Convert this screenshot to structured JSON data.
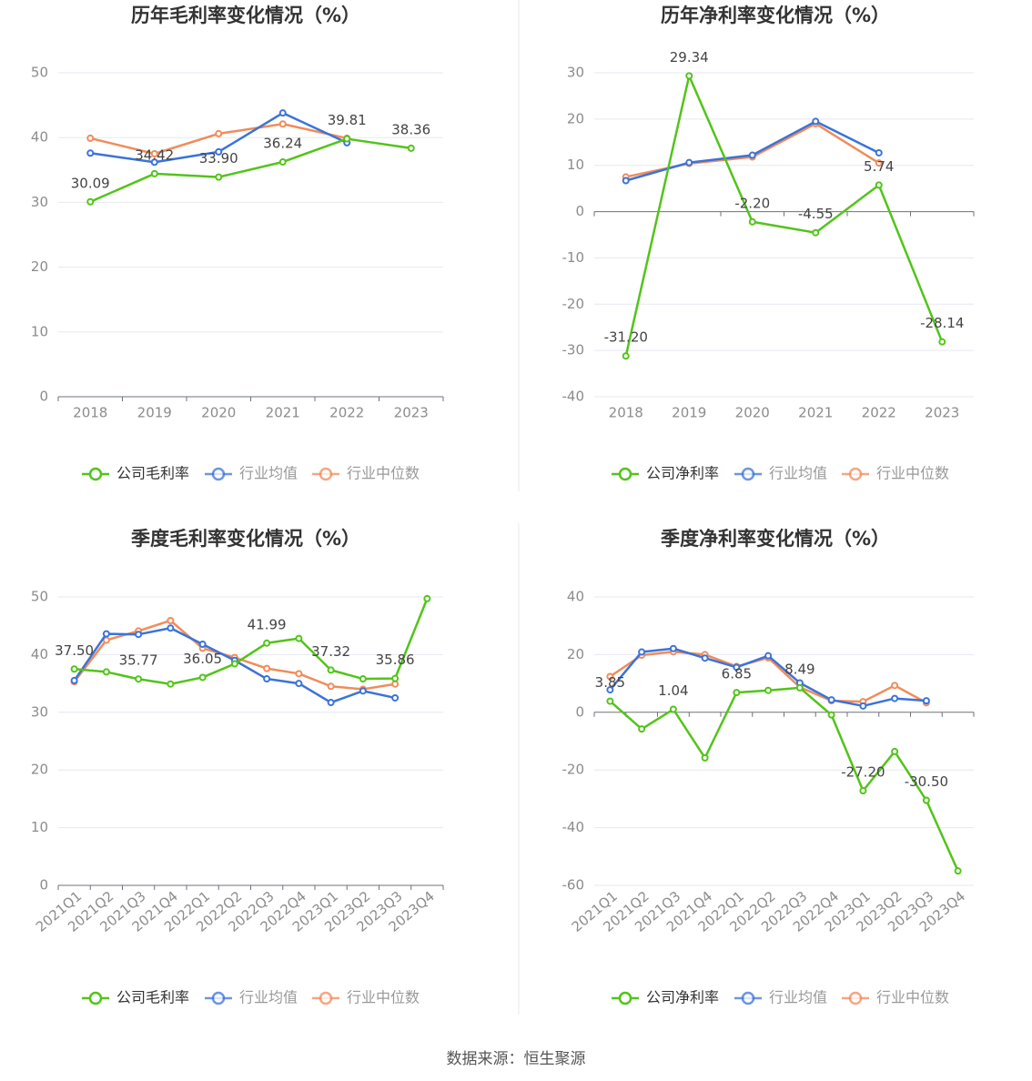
{
  "source_text": "数据来源：恒生聚源",
  "colors": {
    "company": "#52c41a",
    "industry_avg": "#3b73d9",
    "industry_median": "#f08c5a",
    "grid": "#e6e8f0",
    "axis": "#6e7079",
    "tick": "#8c8c8c",
    "title": "#333333"
  },
  "chart_data": [
    {
      "type": "line",
      "title": "历年毛利率变化情况（%）",
      "categories": [
        "2018",
        "2019",
        "2020",
        "2021",
        "2022",
        "2023"
      ],
      "ylim": [
        0,
        50
      ],
      "yticks": [
        0,
        10,
        20,
        30,
        40,
        50
      ],
      "grid": true,
      "legend_position": "bottom",
      "series": [
        {
          "name": "公司毛利率",
          "color_key": "company",
          "values": [
            30.09,
            34.42,
            33.9,
            36.24,
            39.81,
            38.36
          ],
          "labels": [
            "30.09",
            "34.42",
            "33.90",
            "36.24",
            "39.81",
            "38.36"
          ]
        },
        {
          "name": "行业均值",
          "color_key": "industry_avg",
          "values": [
            37.6,
            36.2,
            37.8,
            43.8,
            39.2,
            null
          ]
        },
        {
          "name": "行业中位数",
          "color_key": "industry_median",
          "values": [
            39.9,
            37.5,
            40.6,
            42.1,
            39.9,
            null
          ]
        }
      ]
    },
    {
      "type": "line",
      "title": "历年净利率变化情况（%）",
      "categories": [
        "2018",
        "2019",
        "2020",
        "2021",
        "2022",
        "2023"
      ],
      "ylim": [
        -40,
        30
      ],
      "yticks": [
        -40,
        -30,
        -20,
        -10,
        0,
        10,
        20,
        30
      ],
      "grid": true,
      "legend_position": "bottom",
      "series": [
        {
          "name": "公司净利率",
          "color_key": "company",
          "values": [
            -31.2,
            29.34,
            -2.2,
            -4.55,
            5.74,
            -28.14
          ],
          "labels": [
            "-31.20",
            "29.34",
            "-2.20",
            "-4.55",
            "5.74",
            "-28.14"
          ]
        },
        {
          "name": "行业均值",
          "color_key": "industry_avg",
          "values": [
            6.7,
            10.6,
            12.2,
            19.5,
            12.7,
            null
          ]
        },
        {
          "name": "行业中位数",
          "color_key": "industry_median",
          "values": [
            7.5,
            10.4,
            11.8,
            19.0,
            10.5,
            null
          ]
        }
      ]
    },
    {
      "type": "line",
      "title": "季度毛利率变化情况（%）",
      "categories": [
        "2021Q1",
        "2021Q2",
        "2021Q3",
        "2021Q4",
        "2022Q1",
        "2022Q2",
        "2022Q3",
        "2022Q4",
        "2023Q1",
        "2023Q2",
        "2023Q3",
        "2023Q4"
      ],
      "ylim": [
        0,
        50
      ],
      "yticks": [
        0,
        10,
        20,
        30,
        40,
        50
      ],
      "grid": true,
      "legend_position": "bottom",
      "series": [
        {
          "name": "公司毛利率",
          "color_key": "company",
          "values": [
            37.5,
            37.0,
            35.77,
            34.9,
            36.05,
            38.4,
            41.99,
            42.8,
            37.32,
            35.8,
            35.86,
            49.7
          ],
          "labels": [
            "37.50",
            "",
            "35.77",
            "",
            "36.05",
            "",
            "41.99",
            "",
            "37.32",
            "",
            "35.86",
            ""
          ]
        },
        {
          "name": "行业均值",
          "color_key": "industry_avg",
          "values": [
            35.5,
            43.6,
            43.5,
            44.6,
            41.8,
            39.0,
            35.8,
            35.0,
            31.7,
            33.7,
            32.5,
            null
          ]
        },
        {
          "name": "行业中位数",
          "color_key": "industry_median",
          "values": [
            35.3,
            42.5,
            44.1,
            45.9,
            41.1,
            39.5,
            37.6,
            36.7,
            34.5,
            34.0,
            34.9,
            null
          ]
        }
      ]
    },
    {
      "type": "line",
      "title": "季度净利率变化情况（%）",
      "categories": [
        "2021Q1",
        "2021Q2",
        "2021Q3",
        "2021Q4",
        "2022Q1",
        "2022Q2",
        "2022Q3",
        "2022Q4",
        "2023Q1",
        "2023Q2",
        "2023Q3",
        "2023Q4"
      ],
      "ylim": [
        -60,
        40
      ],
      "yticks": [
        -60,
        -40,
        -20,
        0,
        20,
        40
      ],
      "grid": true,
      "legend_position": "bottom",
      "series": [
        {
          "name": "公司净利率",
          "color_key": "company",
          "values": [
            3.85,
            -5.8,
            1.04,
            -15.8,
            6.85,
            7.6,
            8.49,
            -0.9,
            -27.2,
            -13.6,
            -30.5,
            -55.0
          ],
          "labels": [
            "3.85",
            "",
            "1.04",
            "",
            "6.85",
            "",
            "8.49",
            "",
            "-27.20",
            "",
            "-30.50",
            ""
          ]
        },
        {
          "name": "行业均值",
          "color_key": "industry_avg",
          "values": [
            7.8,
            20.9,
            22.1,
            18.8,
            15.6,
            19.6,
            10.2,
            4.3,
            2.2,
            4.8,
            4.0,
            null
          ]
        },
        {
          "name": "行业中位数",
          "color_key": "industry_median",
          "values": [
            12.4,
            19.8,
            21.0,
            20.0,
            15.9,
            18.9,
            8.7,
            4.0,
            3.7,
            9.3,
            3.3,
            null
          ]
        }
      ]
    }
  ]
}
